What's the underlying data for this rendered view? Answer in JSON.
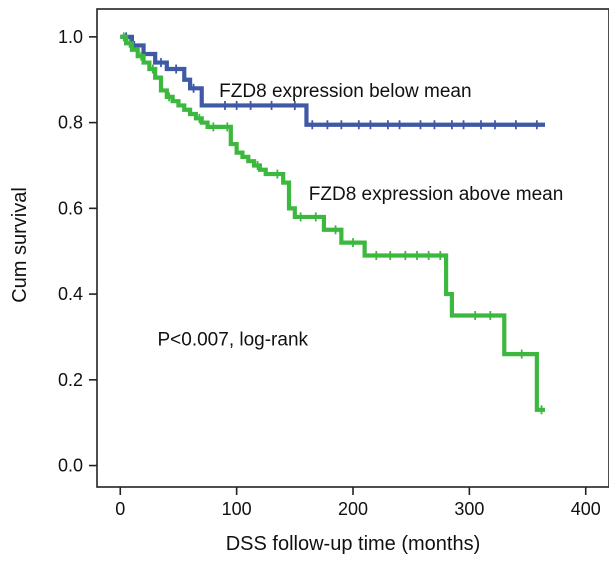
{
  "chart_data": {
    "type": "line",
    "xlabel": "DSS follow-up time (months)",
    "ylabel": "Cum survival",
    "xlim": [
      -20,
      420
    ],
    "ylim": [
      -0.05,
      1.065
    ],
    "x_ticks": [
      0,
      100,
      200,
      300,
      400
    ],
    "y_ticks": [
      0.0,
      0.2,
      0.4,
      0.6,
      0.8,
      1.0
    ],
    "x_tick_labels": [
      "0",
      "100",
      "200",
      "300",
      "400"
    ],
    "y_tick_labels": [
      "0.0",
      "0.2",
      "0.4",
      "0.6",
      "0.8",
      "1.0"
    ],
    "grid": false,
    "annotations": [
      {
        "text": "FZD8 expression below mean",
        "x": 85,
        "y": 0.86
      },
      {
        "text": "FZD8 expression above mean",
        "x": 162,
        "y": 0.62
      },
      {
        "text": "P<0.007, log-rank",
        "x": 32,
        "y": 0.28
      }
    ],
    "series": [
      {
        "color": "#3f59a6",
        "step": true,
        "x": [
          0,
          10,
          20,
          30,
          40,
          55,
          60,
          70,
          160,
          365
        ],
        "y": [
          1.0,
          0.98,
          0.96,
          0.94,
          0.925,
          0.9,
          0.88,
          0.84,
          0.795,
          0.795
        ],
        "censored_x": [
          5,
          12,
          35,
          48,
          63,
          90,
          100,
          112,
          130,
          150,
          165,
          178,
          190,
          205,
          215,
          230,
          240,
          258,
          270,
          285,
          295,
          310,
          322,
          340,
          358
        ]
      },
      {
        "color": "#3db83f",
        "step": true,
        "x": [
          0,
          5,
          10,
          15,
          20,
          25,
          30,
          35,
          40,
          45,
          50,
          55,
          60,
          65,
          70,
          75,
          85,
          95,
          100,
          105,
          110,
          115,
          120,
          125,
          130,
          140,
          145,
          150,
          160,
          175,
          190,
          210,
          280,
          285,
          330,
          358,
          365
        ],
        "y": [
          1.0,
          0.985,
          0.97,
          0.955,
          0.94,
          0.925,
          0.905,
          0.875,
          0.86,
          0.85,
          0.84,
          0.83,
          0.82,
          0.81,
          0.8,
          0.79,
          0.79,
          0.75,
          0.73,
          0.72,
          0.71,
          0.7,
          0.69,
          0.68,
          0.68,
          0.66,
          0.6,
          0.58,
          0.58,
          0.55,
          0.52,
          0.49,
          0.4,
          0.35,
          0.26,
          0.13,
          0.13
        ],
        "censored_x": [
          3,
          8,
          18,
          28,
          42,
          68,
          80,
          92,
          118,
          135,
          155,
          168,
          185,
          200,
          220,
          232,
          245,
          255,
          265,
          275,
          305,
          318,
          345,
          362
        ]
      }
    ]
  }
}
